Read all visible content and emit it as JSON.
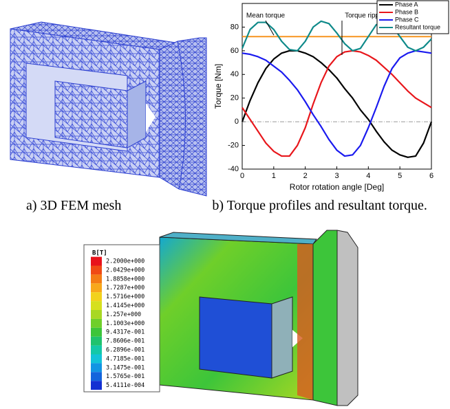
{
  "chart_data": {
    "type": "line",
    "xlabel": "Rotor rotation angle [Deg]",
    "ylabel": "Torque [Nm]",
    "x": [
      0,
      0.25,
      0.5,
      0.75,
      1,
      1.25,
      1.5,
      1.75,
      2,
      2.25,
      2.5,
      2.75,
      3,
      3.25,
      3.5,
      3.75,
      4,
      4.25,
      4.5,
      4.75,
      5,
      5.25,
      5.5,
      5.75,
      6
    ],
    "series": [
      {
        "name": "Phase A",
        "color": "#000000",
        "values": [
          0,
          18,
          33,
          45,
          53,
          58,
          60,
          60,
          58,
          55,
          50,
          44,
          37,
          28,
          20,
          10,
          2,
          -8,
          -17,
          -24,
          -28,
          -30,
          -29,
          -18,
          0
        ]
      },
      {
        "name": "Phase B",
        "color": "#e8161b",
        "values": [
          12,
          2,
          -8,
          -18,
          -25,
          -29,
          -29,
          -20,
          -5,
          15,
          33,
          47,
          55,
          59,
          60,
          59,
          56,
          52,
          46,
          40,
          33,
          26,
          20,
          16,
          12
        ]
      },
      {
        "name": "Phase C",
        "color": "#1a1aef",
        "values": [
          58,
          57,
          55,
          52,
          47,
          42,
          35,
          27,
          17,
          6,
          -4,
          -15,
          -24,
          -29,
          -28,
          -20,
          -5,
          12,
          30,
          45,
          54,
          58,
          60,
          59,
          58
        ]
      },
      {
        "name": "Resultant torque",
        "color": "#0f8a8a",
        "values": [
          62,
          78,
          84,
          84,
          78,
          68,
          61,
          60,
          68,
          80,
          85,
          83,
          75,
          66,
          60,
          62,
          72,
          82,
          85,
          81,
          72,
          63,
          60,
          63,
          70
        ]
      }
    ],
    "reference_line": {
      "value": 72,
      "color": "#f7931e"
    },
    "annotations": [
      "Mean torque",
      "Torque ripple"
    ],
    "xlim": [
      0,
      6
    ],
    "xticks": [
      0,
      1,
      2,
      3,
      4,
      5,
      6
    ],
    "ylim": [
      -40,
      100
    ],
    "yticks": [
      -40,
      -20,
      0,
      20,
      40,
      60,
      80
    ],
    "legend": "top-right"
  },
  "captions": [
    "a) 3D FEM mesh",
    "b) Torque profiles and resultant torque."
  ],
  "colorbar": {
    "title": "B[T]",
    "labels": [
      "2.2000e+000",
      "2.0429e+000",
      "1.8858e+000",
      "1.7287e+000",
      "1.5716e+000",
      "1.4145e+000",
      "1.257e+000",
      "1.1003e+000",
      "9.4317e-001",
      "7.8606e-001",
      "6.2896e-001",
      "4.7185e-001",
      "3.1475e-001",
      "1.5765e-001",
      "5.4111e-004"
    ],
    "colors": [
      "#e8121b",
      "#f04a14",
      "#f47c14",
      "#f8a81a",
      "#f2d21c",
      "#d6e01e",
      "#a8d823",
      "#6fcf2a",
      "#3dc53a",
      "#1fc26e",
      "#13c8a8",
      "#12c3d8",
      "#1295e3",
      "#1364dc",
      "#1430d2"
    ]
  }
}
